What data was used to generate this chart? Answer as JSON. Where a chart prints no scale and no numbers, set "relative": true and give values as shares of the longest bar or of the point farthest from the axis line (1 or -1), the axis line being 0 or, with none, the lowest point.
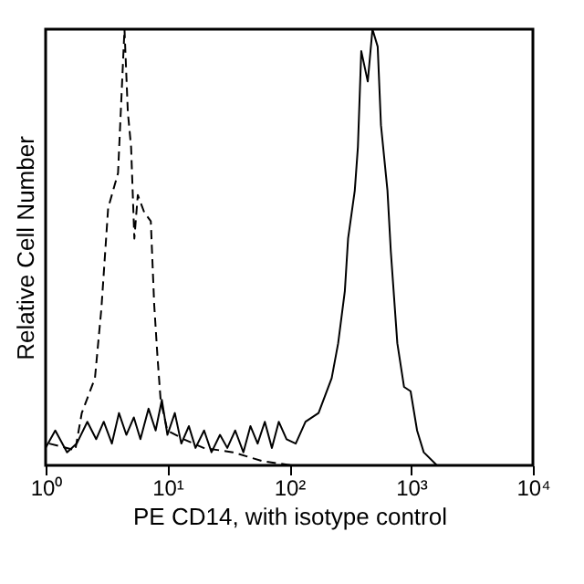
{
  "chart_data": {
    "type": "line",
    "relative": true,
    "xlabel": "PE CD14, with isotype control",
    "ylabel": "Relative Cell Number",
    "log": "x",
    "grid": false,
    "marker": "none",
    "xlim": [
      1,
      10000
    ],
    "xticks": [
      {
        "value": 1,
        "label": "10⁰"
      },
      {
        "value": 10,
        "label": "10¹"
      },
      {
        "value": 100,
        "label": "10²"
      },
      {
        "value": 1000,
        "label": "10³"
      },
      {
        "value": 10000,
        "label": "10⁴"
      }
    ],
    "series": [
      {
        "color": "#000000",
        "line_style": "dashed",
        "x": [
          1.07,
          1.75,
          1.98,
          2.54,
          2.87,
          3.26,
          3.93,
          4.44,
          4.73,
          5.03,
          5.35,
          5.71,
          6.45,
          7.3,
          7.78,
          8.28,
          8.79,
          9.98,
          13.6,
          19.8,
          34.6,
          60,
          105
        ],
        "values": [
          0.05,
          0.035,
          0.12,
          0.2,
          0.36,
          0.59,
          0.67,
          1.0,
          0.81,
          0.73,
          0.52,
          0.62,
          0.58,
          0.56,
          0.37,
          0.25,
          0.15,
          0.08,
          0.06,
          0.04,
          0.03,
          0.01,
          0
        ]
      },
      {
        "color": "#000000",
        "line_style": "solid",
        "x": [
          1,
          1.2,
          1.5,
          1.8,
          2.2,
          2.6,
          3,
          3.5,
          4,
          4.6,
          5.3,
          6,
          7,
          8,
          9,
          10,
          11.5,
          13,
          15,
          17,
          20,
          23,
          27,
          31,
          36,
          42,
          48,
          55,
          63,
          72,
          82,
          95,
          113,
          136,
          174,
          223,
          252,
          286,
          304,
          345,
          366,
          390,
          441,
          482,
          532,
          566,
          640,
          682,
          771,
          875,
          991,
          1120,
          1270,
          1630
        ],
        "values": [
          0.04,
          0.08,
          0.03,
          0.05,
          0.1,
          0.06,
          0.1,
          0.05,
          0.12,
          0.07,
          0.11,
          0.06,
          0.13,
          0.08,
          0.15,
          0.07,
          0.12,
          0.05,
          0.09,
          0.04,
          0.08,
          0.03,
          0.07,
          0.04,
          0.08,
          0.03,
          0.09,
          0.05,
          0.1,
          0.04,
          0.1,
          0.06,
          0.05,
          0.1,
          0.12,
          0.2,
          0.28,
          0.4,
          0.52,
          0.63,
          0.73,
          0.95,
          0.88,
          1.0,
          0.96,
          0.78,
          0.63,
          0.49,
          0.28,
          0.18,
          0.17,
          0.08,
          0.03,
          0
        ]
      }
    ]
  }
}
